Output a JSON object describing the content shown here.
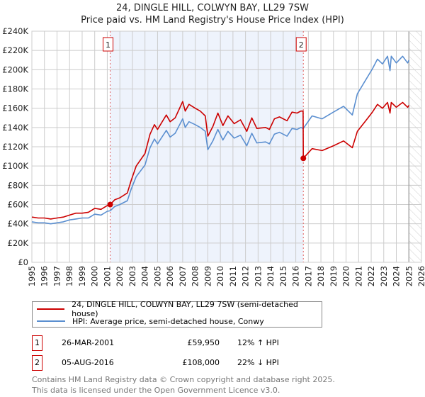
{
  "chart_data": {
    "type": "line",
    "title": "24, DINGLE HILL, COLWYN BAY, LL29 7SW",
    "subtitle": "Price paid vs. HM Land Registry's House Price Index (HPI)",
    "xlim": [
      1995,
      2026
    ],
    "ylim": [
      0,
      240000
    ],
    "x_ticks": [
      "1995",
      "1996",
      "1997",
      "1998",
      "1999",
      "2000",
      "2001",
      "2002",
      "2003",
      "2004",
      "2005",
      "2006",
      "2007",
      "2008",
      "2009",
      "2010",
      "2011",
      "2012",
      "2013",
      "2014",
      "2015",
      "2016",
      "2017",
      "2018",
      "2019",
      "2020",
      "2021",
      "2022",
      "2023",
      "2024",
      "2025",
      "2026"
    ],
    "y_ticks": [
      "£0",
      "£20K",
      "£40K",
      "£60K",
      "£80K",
      "£100K",
      "£120K",
      "£140K",
      "£160K",
      "£180K",
      "£200K",
      "£220K",
      "£240K"
    ],
    "grid": true,
    "shaded_period": [
      2001.23,
      2016.6
    ],
    "forecast_from": 2025.0,
    "series": [
      {
        "name": "24, DINGLE HILL, COLWYN BAY, LL29 7SW (semi-detached house)",
        "color": "#cc0000",
        "x": [
          1995,
          1995.5,
          1996,
          1996.5,
          1997,
          1997.5,
          1998,
          1998.5,
          1999,
          1999.5,
          2000,
          2000.5,
          2001,
          2001.23,
          2001.6,
          2002,
          2002.6,
          2002.9,
          2003.3,
          2004,
          2004.4,
          2004.75,
          2005,
          2005.7,
          2006,
          2006.4,
          2007,
          2007.2,
          2007.5,
          2008,
          2008.4,
          2008.8,
          2009,
          2009.4,
          2009.8,
          2010.2,
          2010.6,
          2011.1,
          2011.6,
          2012.1,
          2012.5,
          2012.9,
          2013.6,
          2013.9,
          2014.3,
          2014.7,
          2015.3,
          2015.7,
          2016.1,
          2016.4,
          2016.58,
          2016.6,
          2017.3,
          2018.1,
          2019,
          2019.8,
          2020.5,
          2020.9,
          2021.5,
          2022.1,
          2022.5,
          2022.9,
          2023.3,
          2023.5,
          2023.6,
          2024,
          2024.5,
          2024.9,
          2025.0
        ],
        "values": [
          47000,
          46000,
          46000,
          45000,
          46000,
          47000,
          49000,
          51000,
          51000,
          52000,
          56000,
          55000,
          59000,
          59950,
          65000,
          67000,
          72000,
          85000,
          100000,
          113000,
          133000,
          143000,
          138000,
          153000,
          146000,
          150000,
          167000,
          157000,
          164000,
          160000,
          157000,
          152000,
          131000,
          141000,
          155000,
          142000,
          152000,
          144000,
          148000,
          136000,
          150000,
          139000,
          140000,
          138000,
          149000,
          151000,
          147000,
          156000,
          155000,
          157000,
          157000,
          108000,
          118000,
          116000,
          121000,
          126000,
          119000,
          136000,
          146000,
          156000,
          164000,
          160000,
          166000,
          155000,
          166000,
          161000,
          166000,
          161000,
          163000
        ]
      },
      {
        "name": "HPI: Average price, semi-detached house, Conwy",
        "color": "#5b8fd0",
        "x": [
          1995,
          1995.5,
          1996,
          1996.5,
          1997,
          1997.5,
          1998,
          1998.5,
          1999,
          1999.5,
          2000,
          2000.5,
          2001,
          2001.23,
          2001.6,
          2002,
          2002.6,
          2002.9,
          2003.3,
          2004,
          2004.4,
          2004.75,
          2005,
          2005.7,
          2006,
          2006.4,
          2007,
          2007.2,
          2007.5,
          2008,
          2008.4,
          2008.8,
          2009,
          2009.4,
          2009.8,
          2010.2,
          2010.6,
          2011.1,
          2011.6,
          2012.1,
          2012.5,
          2012.9,
          2013.6,
          2013.9,
          2014.3,
          2014.7,
          2015.3,
          2015.7,
          2016.1,
          2016.4,
          2016.6,
          2017.3,
          2018.1,
          2019,
          2019.8,
          2020.5,
          2020.9,
          2021.5,
          2022.1,
          2022.5,
          2022.9,
          2023.3,
          2023.5,
          2023.6,
          2024,
          2024.5,
          2024.9,
          2025.0
        ],
        "values": [
          42000,
          41000,
          41000,
          40000,
          41000,
          42000,
          44000,
          45000,
          46000,
          46000,
          50000,
          49000,
          53000,
          53500,
          58000,
          60000,
          64000,
          76000,
          89000,
          101000,
          119000,
          128000,
          123000,
          137000,
          130000,
          134000,
          149000,
          140000,
          146000,
          143000,
          140000,
          136000,
          117000,
          126000,
          138000,
          127000,
          136000,
          129000,
          132000,
          121000,
          134000,
          124000,
          125000,
          123000,
          133000,
          135000,
          131000,
          139000,
          138000,
          140000,
          139000,
          152000,
          149000,
          156000,
          162000,
          153000,
          175000,
          188000,
          201000,
          211000,
          206000,
          214000,
          199000,
          214000,
          207000,
          214000,
          207000,
          210000
        ]
      }
    ],
    "sales": [
      {
        "label": "1",
        "x": 2001.23,
        "value": 59950,
        "date": "26-MAR-2001",
        "price": "£59,950",
        "hpi": "12% ↑ HPI"
      },
      {
        "label": "2",
        "x": 2016.6,
        "value": 108000,
        "date": "05-AUG-2016",
        "price": "£108,000",
        "hpi": "22% ↓ HPI"
      }
    ]
  },
  "footer": {
    "line1": "Contains HM Land Registry data © Crown copyright and database right 2025.",
    "line2": "This data is licensed under the Open Government Licence v3.0."
  }
}
